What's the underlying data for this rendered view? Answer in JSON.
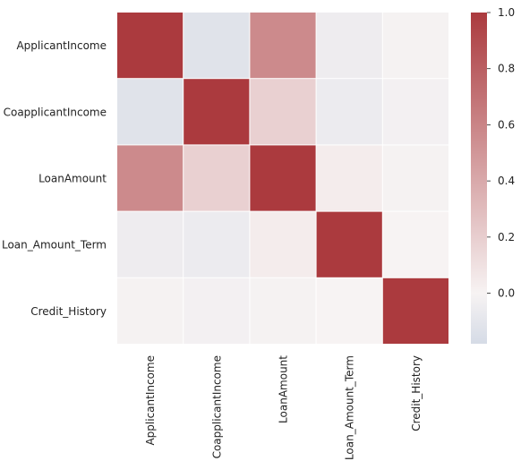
{
  "chart_data": {
    "type": "heatmap",
    "title": "",
    "xlabel": "",
    "ylabel": "",
    "rows": [
      "ApplicantIncome",
      "CoapplicantIncome",
      "LoanAmount",
      "Loan_Amount_Term",
      "Credit_History"
    ],
    "columns": [
      "ApplicantIncome",
      "CoapplicantIncome",
      "LoanAmount",
      "Loan_Amount_Term",
      "Credit_History"
    ],
    "values": [
      [
        1.0,
        -0.12,
        0.57,
        -0.05,
        -0.01
      ],
      [
        -0.12,
        1.0,
        0.19,
        -0.06,
        -0.02
      ],
      [
        0.57,
        0.19,
        1.0,
        0.04,
        -0.01
      ],
      [
        -0.05,
        -0.06,
        0.04,
        1.0,
        0.0
      ],
      [
        -0.01,
        -0.02,
        -0.01,
        0.0,
        1.0
      ]
    ],
    "colorbar": {
      "min": -0.18,
      "max": 1.0,
      "ticks": [
        0.0,
        0.2,
        0.4,
        0.6,
        0.8,
        1.0
      ],
      "tick_labels": [
        "0.0",
        "0.2",
        "0.4",
        "0.6",
        "0.8",
        "1.0"
      ],
      "colormap": "diverging blue-white-red (vlag)",
      "colors": {
        "low": "#d5dbe6",
        "mid": "#f7f3f3",
        "high": "#ab3a3e"
      }
    },
    "grid": true,
    "legend": "right"
  }
}
